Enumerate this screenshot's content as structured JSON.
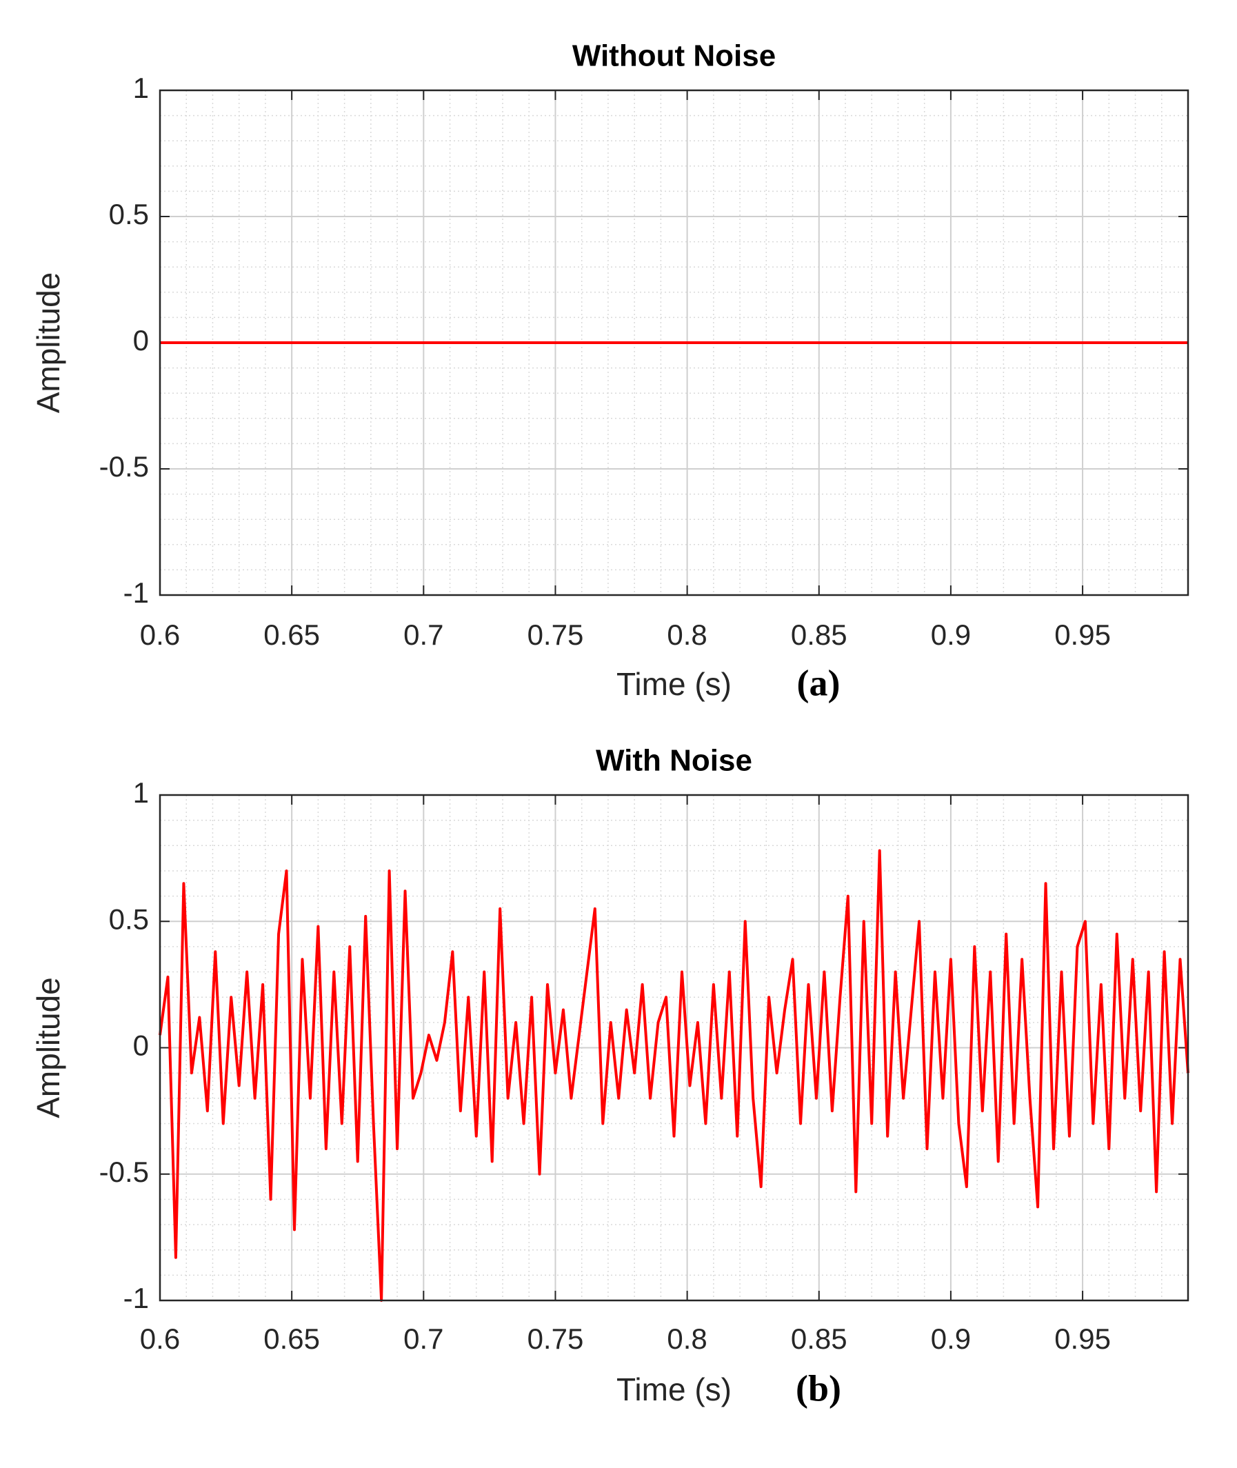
{
  "chart_data": [
    {
      "type": "line",
      "title": "Without Noise",
      "xlabel": "Time (s)",
      "ylabel": "Amplitude",
      "panel_label": "(a)",
      "x": [
        0.6,
        0.99
      ],
      "values": [
        0,
        0
      ],
      "color": "#ff0000",
      "xlim": [
        0.6,
        0.99
      ],
      "ylim": [
        -1,
        1
      ],
      "xticks": [
        0.6,
        0.65,
        0.7,
        0.75,
        0.8,
        0.85,
        0.9,
        0.95
      ],
      "yticks": [
        -1,
        -0.5,
        0,
        0.5,
        1
      ],
      "grid": true,
      "minor_grid": true
    },
    {
      "type": "line",
      "title": "With Noise",
      "xlabel": "Time (s)",
      "ylabel": "Amplitude",
      "panel_label": "(b)",
      "x": [
        0.6,
        0.603,
        0.606,
        0.609,
        0.612,
        0.615,
        0.618,
        0.621,
        0.624,
        0.627,
        0.63,
        0.633,
        0.636,
        0.639,
        0.642,
        0.645,
        0.648,
        0.651,
        0.654,
        0.657,
        0.66,
        0.663,
        0.666,
        0.669,
        0.672,
        0.675,
        0.678,
        0.681,
        0.684,
        0.687,
        0.69,
        0.693,
        0.696,
        0.699,
        0.702,
        0.705,
        0.708,
        0.711,
        0.714,
        0.717,
        0.72,
        0.723,
        0.726,
        0.729,
        0.732,
        0.735,
        0.738,
        0.741,
        0.744,
        0.747,
        0.75,
        0.753,
        0.756,
        0.759,
        0.762,
        0.765,
        0.768,
        0.771,
        0.774,
        0.777,
        0.78,
        0.783,
        0.786,
        0.789,
        0.792,
        0.795,
        0.798,
        0.801,
        0.804,
        0.807,
        0.81,
        0.813,
        0.816,
        0.819,
        0.822,
        0.825,
        0.828,
        0.831,
        0.834,
        0.837,
        0.84,
        0.843,
        0.846,
        0.849,
        0.852,
        0.855,
        0.858,
        0.861,
        0.864,
        0.867,
        0.87,
        0.873,
        0.876,
        0.879,
        0.882,
        0.885,
        0.888,
        0.891,
        0.894,
        0.897,
        0.9,
        0.903,
        0.906,
        0.909,
        0.912,
        0.915,
        0.918,
        0.921,
        0.924,
        0.927,
        0.93,
        0.933,
        0.936,
        0.939,
        0.942,
        0.945,
        0.948,
        0.951,
        0.954,
        0.957,
        0.96,
        0.963,
        0.966,
        0.969,
        0.972,
        0.975,
        0.978,
        0.981,
        0.984,
        0.987,
        0.99
      ],
      "values": [
        0.05,
        0.28,
        -0.83,
        0.65,
        -0.1,
        0.12,
        -0.25,
        0.38,
        -0.3,
        0.2,
        -0.15,
        0.3,
        -0.2,
        0.25,
        -0.6,
        0.45,
        0.7,
        -0.72,
        0.35,
        -0.2,
        0.48,
        -0.4,
        0.3,
        -0.3,
        0.4,
        -0.45,
        0.52,
        -0.3,
        -1.0,
        0.7,
        -0.4,
        0.62,
        -0.2,
        -0.1,
        0.05,
        -0.05,
        0.1,
        0.38,
        -0.25,
        0.2,
        -0.35,
        0.3,
        -0.45,
        0.55,
        -0.2,
        0.1,
        -0.3,
        0.2,
        -0.5,
        0.25,
        -0.1,
        0.15,
        -0.2,
        0.05,
        0.3,
        0.55,
        -0.3,
        0.1,
        -0.2,
        0.15,
        -0.1,
        0.25,
        -0.2,
        0.1,
        0.2,
        -0.35,
        0.3,
        -0.15,
        0.1,
        -0.3,
        0.25,
        -0.2,
        0.3,
        -0.35,
        0.5,
        -0.2,
        -0.55,
        0.2,
        -0.1,
        0.15,
        0.35,
        -0.3,
        0.25,
        -0.2,
        0.3,
        -0.25,
        0.2,
        0.6,
        -0.57,
        0.5,
        -0.3,
        0.78,
        -0.35,
        0.3,
        -0.2,
        0.15,
        0.5,
        -0.4,
        0.3,
        -0.2,
        0.35,
        -0.3,
        -0.55,
        0.4,
        -0.25,
        0.3,
        -0.45,
        0.45,
        -0.3,
        0.35,
        -0.2,
        -0.63,
        0.65,
        -0.4,
        0.3,
        -0.35,
        0.4,
        0.5,
        -0.3,
        0.25,
        -0.4,
        0.45,
        -0.2,
        0.35,
        -0.25,
        0.3,
        -0.57,
        0.38,
        -0.3,
        0.35,
        -0.1
      ],
      "color": "#ff0000",
      "xlim": [
        0.6,
        0.99
      ],
      "ylim": [
        -1,
        1
      ],
      "xticks": [
        0.6,
        0.65,
        0.7,
        0.75,
        0.8,
        0.85,
        0.9,
        0.95
      ],
      "yticks": [
        -1,
        -0.5,
        0,
        0.5,
        1
      ],
      "grid": true,
      "minor_grid": true
    }
  ]
}
